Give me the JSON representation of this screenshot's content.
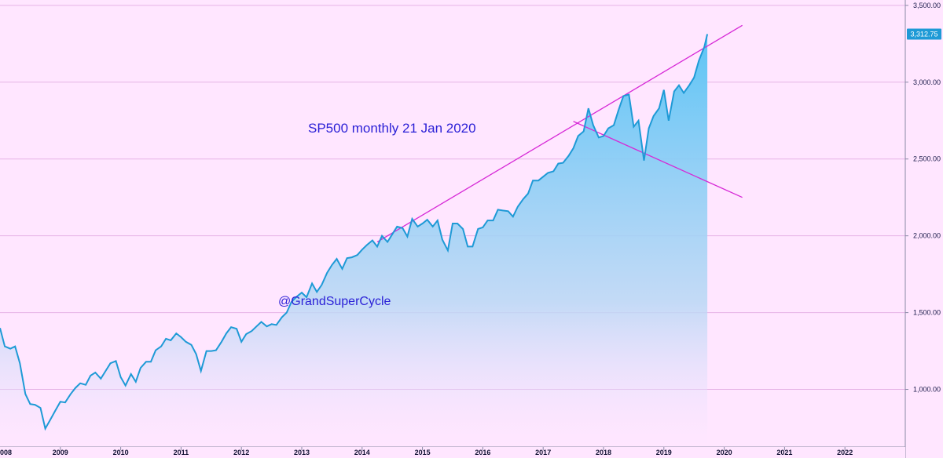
{
  "chart_data": {
    "type": "area",
    "title": "SP500  monthly 21 Jan 2020",
    "watermark": "@GrandSuperCycle",
    "last_price_label": "3,312.75",
    "last_price": 3312.75,
    "xlim": [
      2008.0,
      2023.0
    ],
    "ylim": [
      625,
      3535
    ],
    "y_ticks": [
      1000,
      1500,
      2000,
      2500,
      3000,
      3500
    ],
    "y_tick_labels": [
      "1,000.00",
      "1,500.00",
      "2,000.00",
      "2,500.00",
      "3,000.00",
      "3,500.00"
    ],
    "x_ticks": [
      2009,
      2010,
      2011,
      2012,
      2013,
      2014,
      2015,
      2016,
      2017,
      2018,
      2019,
      2020,
      2021,
      2022
    ],
    "x_tick_labels": [
      "2009",
      "2010",
      "2011",
      "2012",
      "2013",
      "2014",
      "2015",
      "2016",
      "2017",
      "2018",
      "2019",
      "2020",
      "2021",
      "2022"
    ],
    "partial_x_label": "008",
    "grid": true,
    "colors": {
      "background": "#ffe6ff",
      "line": "#1e9ad6",
      "fill_top": "#5cc4f5",
      "fill_bottom": "#ffe6ff",
      "trendline": "#d628d6",
      "text": "#2a1fd6",
      "gridline": "#e6b3e6",
      "price_badge": "#1e9ad6"
    },
    "series": [
      {
        "values": [
          [
            2008.0,
            1400
          ],
          [
            2008.08,
            1280
          ],
          [
            2008.17,
            1265
          ],
          [
            2008.25,
            1280
          ],
          [
            2008.33,
            1170
          ],
          [
            2008.42,
            970
          ],
          [
            2008.5,
            905
          ],
          [
            2008.58,
            900
          ],
          [
            2008.67,
            880
          ],
          [
            2008.75,
            745
          ],
          [
            2008.83,
            800
          ],
          [
            2008.92,
            865
          ],
          [
            2009.0,
            920
          ],
          [
            2009.08,
            915
          ],
          [
            2009.17,
            970
          ],
          [
            2009.25,
            1010
          ],
          [
            2009.33,
            1040
          ],
          [
            2009.42,
            1030
          ],
          [
            2009.5,
            1090
          ],
          [
            2009.58,
            1110
          ],
          [
            2009.67,
            1070
          ],
          [
            2009.75,
            1120
          ],
          [
            2009.83,
            1170
          ],
          [
            2009.92,
            1185
          ],
          [
            2010.0,
            1080
          ],
          [
            2010.08,
            1025
          ],
          [
            2010.17,
            1100
          ],
          [
            2010.25,
            1050
          ],
          [
            2010.33,
            1140
          ],
          [
            2010.42,
            1180
          ],
          [
            2010.5,
            1180
          ],
          [
            2010.58,
            1255
          ],
          [
            2010.67,
            1280
          ],
          [
            2010.75,
            1330
          ],
          [
            2010.83,
            1320
          ],
          [
            2010.92,
            1365
          ],
          [
            2011.0,
            1340
          ],
          [
            2011.08,
            1310
          ],
          [
            2011.17,
            1290
          ],
          [
            2011.25,
            1230
          ],
          [
            2011.33,
            1120
          ],
          [
            2011.42,
            1250
          ],
          [
            2011.5,
            1250
          ],
          [
            2011.58,
            1255
          ],
          [
            2011.67,
            1310
          ],
          [
            2011.75,
            1365
          ],
          [
            2011.83,
            1405
          ],
          [
            2011.92,
            1395
          ],
          [
            2012.0,
            1310
          ],
          [
            2012.08,
            1360
          ],
          [
            2012.17,
            1380
          ],
          [
            2012.25,
            1410
          ],
          [
            2012.33,
            1440
          ],
          [
            2012.42,
            1410
          ],
          [
            2012.5,
            1425
          ],
          [
            2012.58,
            1420
          ],
          [
            2012.67,
            1470
          ],
          [
            2012.75,
            1500
          ],
          [
            2012.83,
            1570
          ],
          [
            2012.92,
            1605
          ],
          [
            2013.0,
            1630
          ],
          [
            2013.08,
            1600
          ],
          [
            2013.17,
            1690
          ],
          [
            2013.25,
            1635
          ],
          [
            2013.33,
            1680
          ],
          [
            2013.42,
            1760
          ],
          [
            2013.5,
            1810
          ],
          [
            2013.58,
            1850
          ],
          [
            2013.67,
            1785
          ],
          [
            2013.75,
            1855
          ],
          [
            2013.83,
            1860
          ],
          [
            2013.92,
            1875
          ],
          [
            2014.0,
            1910
          ],
          [
            2014.08,
            1940
          ],
          [
            2014.17,
            1970
          ],
          [
            2014.25,
            1930
          ],
          [
            2014.33,
            2000
          ],
          [
            2014.42,
            1960
          ],
          [
            2014.5,
            2010
          ],
          [
            2014.58,
            2060
          ],
          [
            2014.67,
            2050
          ],
          [
            2014.75,
            1995
          ],
          [
            2014.83,
            2110
          ],
          [
            2014.92,
            2060
          ],
          [
            2015.0,
            2080
          ],
          [
            2015.08,
            2105
          ],
          [
            2015.17,
            2060
          ],
          [
            2015.25,
            2100
          ],
          [
            2015.33,
            1975
          ],
          [
            2015.42,
            1905
          ],
          [
            2015.5,
            2080
          ],
          [
            2015.58,
            2080
          ],
          [
            2015.67,
            2045
          ],
          [
            2015.75,
            1930
          ],
          [
            2015.83,
            1930
          ],
          [
            2015.92,
            2045
          ],
          [
            2016.0,
            2055
          ],
          [
            2016.08,
            2100
          ],
          [
            2016.17,
            2100
          ],
          [
            2016.25,
            2170
          ],
          [
            2016.33,
            2165
          ],
          [
            2016.42,
            2160
          ],
          [
            2016.5,
            2125
          ],
          [
            2016.58,
            2190
          ],
          [
            2016.67,
            2240
          ],
          [
            2016.75,
            2275
          ],
          [
            2016.83,
            2360
          ],
          [
            2016.92,
            2360
          ],
          [
            2017.0,
            2385
          ],
          [
            2017.08,
            2410
          ],
          [
            2017.17,
            2420
          ],
          [
            2017.25,
            2470
          ],
          [
            2017.33,
            2475
          ],
          [
            2017.42,
            2520
          ],
          [
            2017.5,
            2570
          ],
          [
            2017.58,
            2650
          ],
          [
            2017.67,
            2680
          ],
          [
            2017.75,
            2830
          ],
          [
            2017.83,
            2720
          ],
          [
            2017.92,
            2640
          ],
          [
            2018.0,
            2650
          ],
          [
            2018.08,
            2700
          ],
          [
            2018.17,
            2720
          ],
          [
            2018.25,
            2820
          ],
          [
            2018.33,
            2910
          ],
          [
            2018.42,
            2920
          ],
          [
            2018.5,
            2710
          ],
          [
            2018.58,
            2750
          ],
          [
            2018.67,
            2490
          ],
          [
            2018.75,
            2700
          ],
          [
            2018.83,
            2780
          ],
          [
            2018.92,
            2830
          ],
          [
            2019.0,
            2950
          ],
          [
            2019.08,
            2750
          ],
          [
            2019.17,
            2940
          ],
          [
            2019.25,
            2980
          ],
          [
            2019.33,
            2930
          ],
          [
            2019.42,
            2980
          ],
          [
            2019.5,
            3030
          ],
          [
            2019.58,
            3140
          ],
          [
            2019.67,
            3230
          ],
          [
            2019.72,
            3312.75
          ]
        ]
      }
    ],
    "trendlines": [
      {
        "name": "upper",
        "from": [
          2014.25,
          1960
        ],
        "to": [
          2020.3,
          3370
        ]
      },
      {
        "name": "lower",
        "from": [
          2017.5,
          2745
        ],
        "to": [
          2020.3,
          2250
        ]
      }
    ]
  }
}
